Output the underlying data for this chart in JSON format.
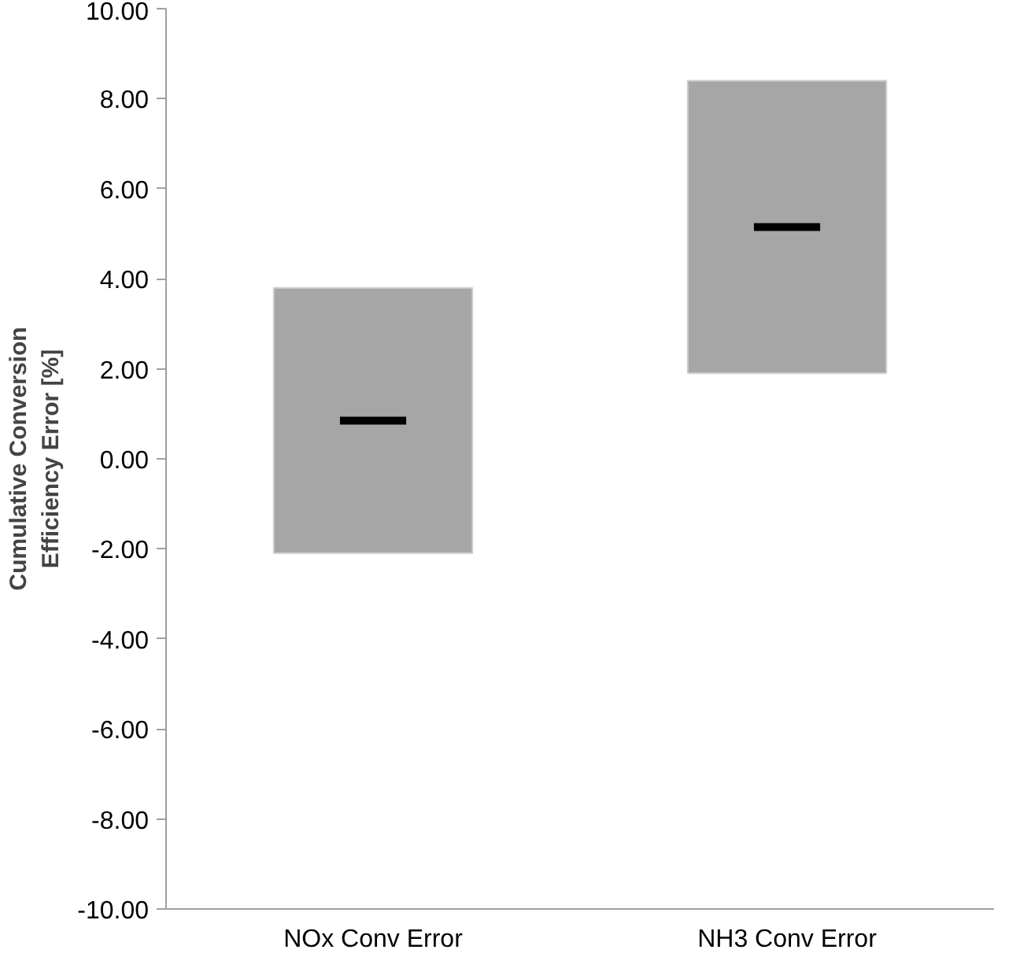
{
  "chart_data": {
    "type": "box",
    "ylabel": "Cumulative Conversion\nEfficiency Error [%]",
    "categories": [
      "NOx Conv Error",
      "NH3 Conv Error"
    ],
    "boxes": [
      {
        "low": -2.1,
        "q1": -2.1,
        "median": 0.85,
        "q3": 3.8,
        "high": 3.8
      },
      {
        "low": 1.9,
        "q1": 1.9,
        "median": 5.15,
        "q3": 8.4,
        "high": 8.4
      }
    ],
    "color": "#a6a6a6",
    "ylim": [
      -10,
      10
    ],
    "yticks": [
      {
        "value": -10,
        "label": "-10.00"
      },
      {
        "value": -8,
        "label": "-8.00"
      },
      {
        "value": -6,
        "label": "-6.00"
      },
      {
        "value": -4,
        "label": "-4.00"
      },
      {
        "value": -2,
        "label": "-2.00"
      },
      {
        "value": 0,
        "label": "0.00"
      },
      {
        "value": 2,
        "label": "2.00"
      },
      {
        "value": 4,
        "label": "4.00"
      },
      {
        "value": 6,
        "label": "6.00"
      },
      {
        "value": 8,
        "label": "8.00"
      },
      {
        "value": 10,
        "label": "10.00"
      }
    ],
    "grid": false
  }
}
